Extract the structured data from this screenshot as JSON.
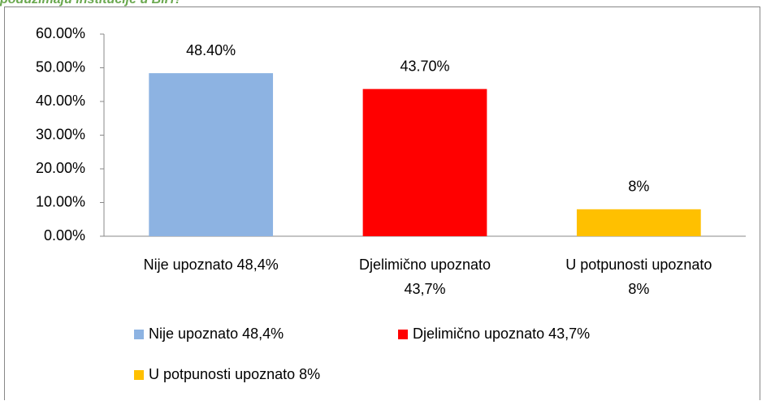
{
  "chart_data": {
    "type": "bar",
    "title": "poduzimaju institucije u BiH?",
    "categories": [
      "Nije upoznato 48,4%",
      "Djelimično upoznato 43,7%",
      "U potpunosti upoznato 8%"
    ],
    "values": [
      48.4,
      43.7,
      8
    ],
    "value_labels": [
      "48.40%",
      "43.70%",
      "8%"
    ],
    "colors": [
      "#8db3e2",
      "#ff0000",
      "#ffc000"
    ],
    "ylim": [
      0,
      60
    ],
    "yticks": [
      {
        "value": 0,
        "label": "0.00%"
      },
      {
        "value": 10,
        "label": "10.00%"
      },
      {
        "value": 20,
        "label": "20.00%"
      },
      {
        "value": 30,
        "label": "30.00%"
      },
      {
        "value": 40,
        "label": "40.00%"
      },
      {
        "value": 50,
        "label": "50.00%"
      },
      {
        "value": 60,
        "label": "60.00%"
      }
    ],
    "grid": false
  }
}
